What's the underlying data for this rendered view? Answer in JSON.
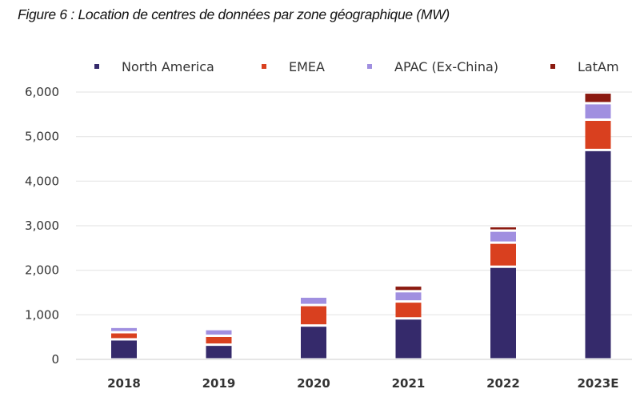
{
  "title": "Figure 6 : Location de centres de données par zone géographique (MW)",
  "chart_data": {
    "type": "bar",
    "stacked": true,
    "title": "Figure 6 : Location de centres de données par zone géographique (MW)",
    "xlabel": "",
    "ylabel": "",
    "ylim": [
      0,
      6000
    ],
    "yticks": [
      0,
      1000,
      2000,
      3000,
      4000,
      5000,
      6000
    ],
    "ytick_labels": [
      "0",
      "1,000",
      "2,000",
      "3,000",
      "4,000",
      "5,000",
      "6,000"
    ],
    "grid": true,
    "legend": "top",
    "categories": [
      "2018",
      "2019",
      "2020",
      "2021",
      "2022",
      "2023E"
    ],
    "series": [
      {
        "name": "North America",
        "color": "#352a6b",
        "values": [
          450,
          330,
          760,
          920,
          2080,
          4700
        ]
      },
      {
        "name": "EMEA",
        "color": "#d9401f",
        "values": [
          160,
          200,
          460,
          380,
          540,
          680
        ]
      },
      {
        "name": "APAC (Ex-China)",
        "color": "#a08fe0",
        "values": [
          120,
          150,
          190,
          230,
          270,
          370
        ]
      },
      {
        "name": "LatAm",
        "color": "#8b1a10",
        "values": [
          0,
          0,
          0,
          130,
          100,
          240
        ]
      }
    ]
  }
}
